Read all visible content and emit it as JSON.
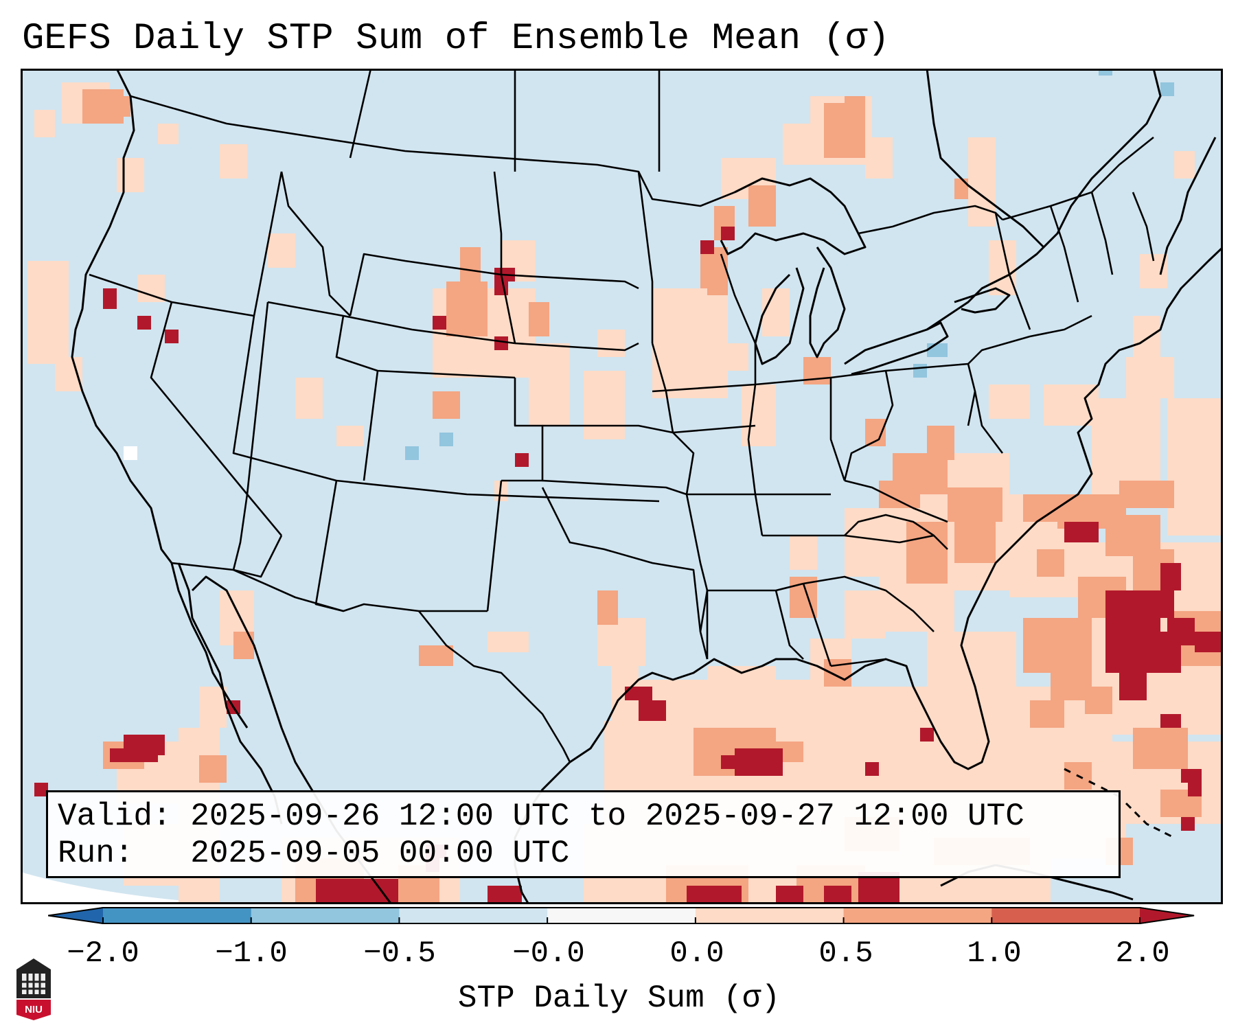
{
  "title": "GEFS Daily STP Sum of Ensemble Mean (σ)",
  "info": {
    "valid_label": "Valid:",
    "valid_value": "2025-09-26 12:00 UTC to 2025-09-27 12:00 UTC",
    "run_label": "Run:",
    "run_value": "2025-09-05 00:00 UTC"
  },
  "colorbar": {
    "label": "STP Daily Sum (σ)",
    "ticks": [
      "−2.0",
      "−1.0",
      "−0.5",
      "−0.0",
      "0.0",
      "0.5",
      "1.0",
      "2.0"
    ],
    "bins": [
      {
        "from": -2.0,
        "to": -1.0,
        "color": "#4393c3"
      },
      {
        "from": -1.0,
        "to": -0.5,
        "color": "#92c5de"
      },
      {
        "from": -0.5,
        "to": -0.0,
        "color": "#d1e5f0"
      },
      {
        "from": -0.0,
        "to": 0.0,
        "color": "#f7f7f7"
      },
      {
        "from": 0.0,
        "to": 0.5,
        "color": "#fddbc7"
      },
      {
        "from": 0.5,
        "to": 1.0,
        "color": "#f4a582"
      },
      {
        "from": 1.0,
        "to": 2.0,
        "color": "#d6604d"
      }
    ],
    "under_color": "#2166ac",
    "over_color": "#b2182b"
  },
  "map": {
    "background_color": "#d1e5f0",
    "border_color": "#000000",
    "features": [
      "coastlines",
      "state borders",
      "country borders"
    ]
  },
  "logo": {
    "text": "NIU",
    "icon": "university-logo-icon"
  }
}
